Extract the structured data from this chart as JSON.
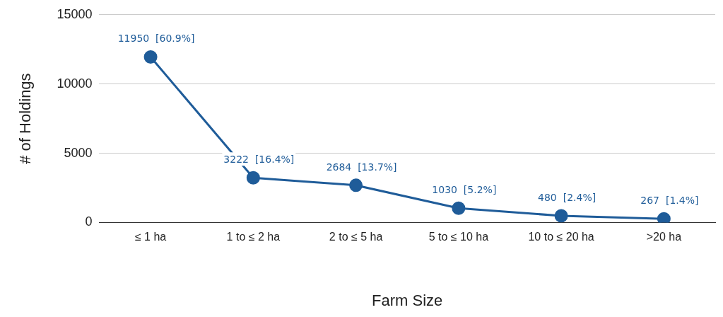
{
  "chart_data": {
    "type": "line",
    "xlabel": "Farm Size",
    "ylabel": "# of Holdings",
    "categories": [
      "≤ 1 ha",
      "1 to ≤ 2 ha",
      "2 to ≤ 5 ha",
      "5 to ≤ 10 ha",
      "10 to ≤ 20 ha",
      ">20 ha"
    ],
    "values": [
      11950,
      3222,
      2684,
      1030,
      480,
      267
    ],
    "value_labels": [
      "11950  [60.9%]",
      "3222  [16.4%]",
      "2684  [13.7%]",
      "1030  [5.2%]",
      "480  [2.4%]",
      "267  [1.4%]"
    ],
    "color": "#1f5c99",
    "ylim": [
      0,
      15000
    ],
    "yticks": [
      0,
      5000,
      10000,
      15000
    ],
    "grid": "y",
    "marker": "circle",
    "line_style": "solid",
    "legend": false
  }
}
